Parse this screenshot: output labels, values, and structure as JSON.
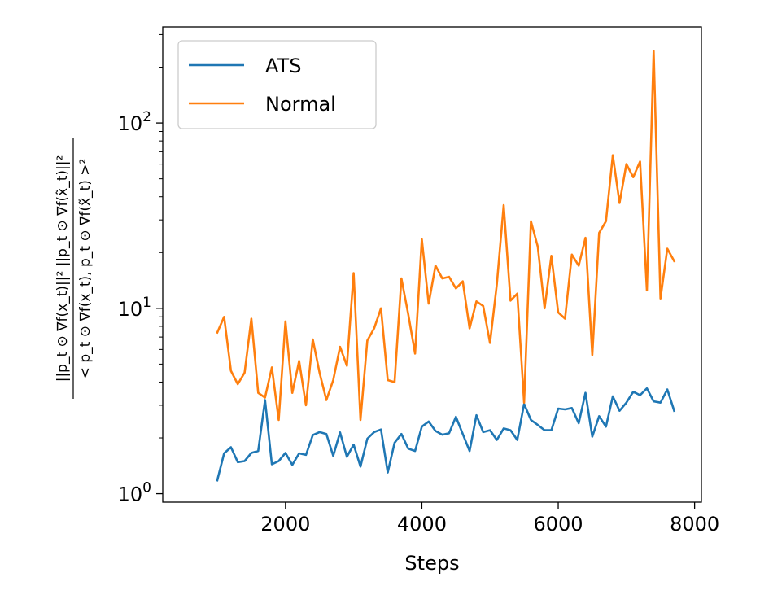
{
  "chart_data": {
    "type": "line",
    "title": "",
    "xlabel": "Steps",
    "ylabel": {
      "numerator": "||p_t ⊙ ∇f(x_t)||² ||p_t ⊙ ∇f(x̃_t)||²",
      "denominator": "< p_t ⊙ ∇f(x_t), p_t ⊙ ∇f(x̃_t) >²"
    },
    "yscale": "log",
    "xlim": [
      200,
      8100
    ],
    "ylim": [
      0.9,
      330
    ],
    "xticks": [
      2000,
      4000,
      6000,
      8000
    ],
    "xtick_labels": [
      "2000",
      "4000",
      "6000",
      "8000"
    ],
    "yticks": [
      {
        "value": 1,
        "base": "10",
        "exp": "0"
      },
      {
        "value": 10,
        "base": "10",
        "exp": "1"
      },
      {
        "value": 100,
        "base": "10",
        "exp": "2"
      }
    ],
    "legend_position": "upper-left",
    "x": [
      1000,
      1100,
      1200,
      1300,
      1400,
      1500,
      1600,
      1700,
      1800,
      1900,
      2000,
      2100,
      2200,
      2300,
      2400,
      2500,
      2600,
      2700,
      2800,
      2900,
      3000,
      3100,
      3200,
      3300,
      3400,
      3500,
      3600,
      3700,
      3800,
      3900,
      4000,
      4100,
      4200,
      4300,
      4400,
      4500,
      4600,
      4700,
      4800,
      4900,
      5000,
      5100,
      5200,
      5300,
      5400,
      5500,
      5600,
      5700,
      5800,
      5900,
      6000,
      6100,
      6200,
      6300,
      6400,
      6500,
      6600,
      6700,
      6800,
      6900,
      7000,
      7100,
      7200,
      7300,
      7400,
      7500,
      7600,
      7700
    ],
    "series": [
      {
        "name": "ATS",
        "color": "#1f77b4",
        "values": [
          1.18,
          1.65,
          1.78,
          1.48,
          1.5,
          1.66,
          1.7,
          3.2,
          1.44,
          1.5,
          1.66,
          1.43,
          1.65,
          1.62,
          2.07,
          2.15,
          2.1,
          1.6,
          2.14,
          1.58,
          1.84,
          1.4,
          1.98,
          2.15,
          2.22,
          1.3,
          1.88,
          2.1,
          1.75,
          1.7,
          2.3,
          2.45,
          2.18,
          2.08,
          2.12,
          2.6,
          2.1,
          1.7,
          2.65,
          2.15,
          2.2,
          1.95,
          2.25,
          2.2,
          1.95,
          3.05,
          2.5,
          2.35,
          2.2,
          2.2,
          2.88,
          2.85,
          2.9,
          2.4,
          3.5,
          2.03,
          2.62,
          2.3,
          3.35,
          2.8,
          3.1,
          3.55,
          3.4,
          3.7,
          3.15,
          3.1,
          3.65,
          2.8
        ]
      },
      {
        "name": "Normal",
        "color": "#ff7f0e",
        "values": [
          7.4,
          9.0,
          4.6,
          3.9,
          4.5,
          8.8,
          3.5,
          3.3,
          4.8,
          2.5,
          8.5,
          3.5,
          5.2,
          3.0,
          6.8,
          4.5,
          3.2,
          4.1,
          6.2,
          4.9,
          15.5,
          2.5,
          6.7,
          7.8,
          10.0,
          4.1,
          4.0,
          14.5,
          9.3,
          5.7,
          23.6,
          10.6,
          17.0,
          14.5,
          14.8,
          12.8,
          14.0,
          7.8,
          10.9,
          10.3,
          6.5,
          13.5,
          36.0,
          11.0,
          12.0,
          3.1,
          29.5,
          21.5,
          10.0,
          19.2,
          9.5,
          8.8,
          19.5,
          17.0,
          24.0,
          5.6,
          25.5,
          29.5,
          67.0,
          37.0,
          60.0,
          51.0,
          62.0,
          12.5,
          245.0,
          11.3,
          21.0,
          18.0
        ]
      }
    ]
  }
}
